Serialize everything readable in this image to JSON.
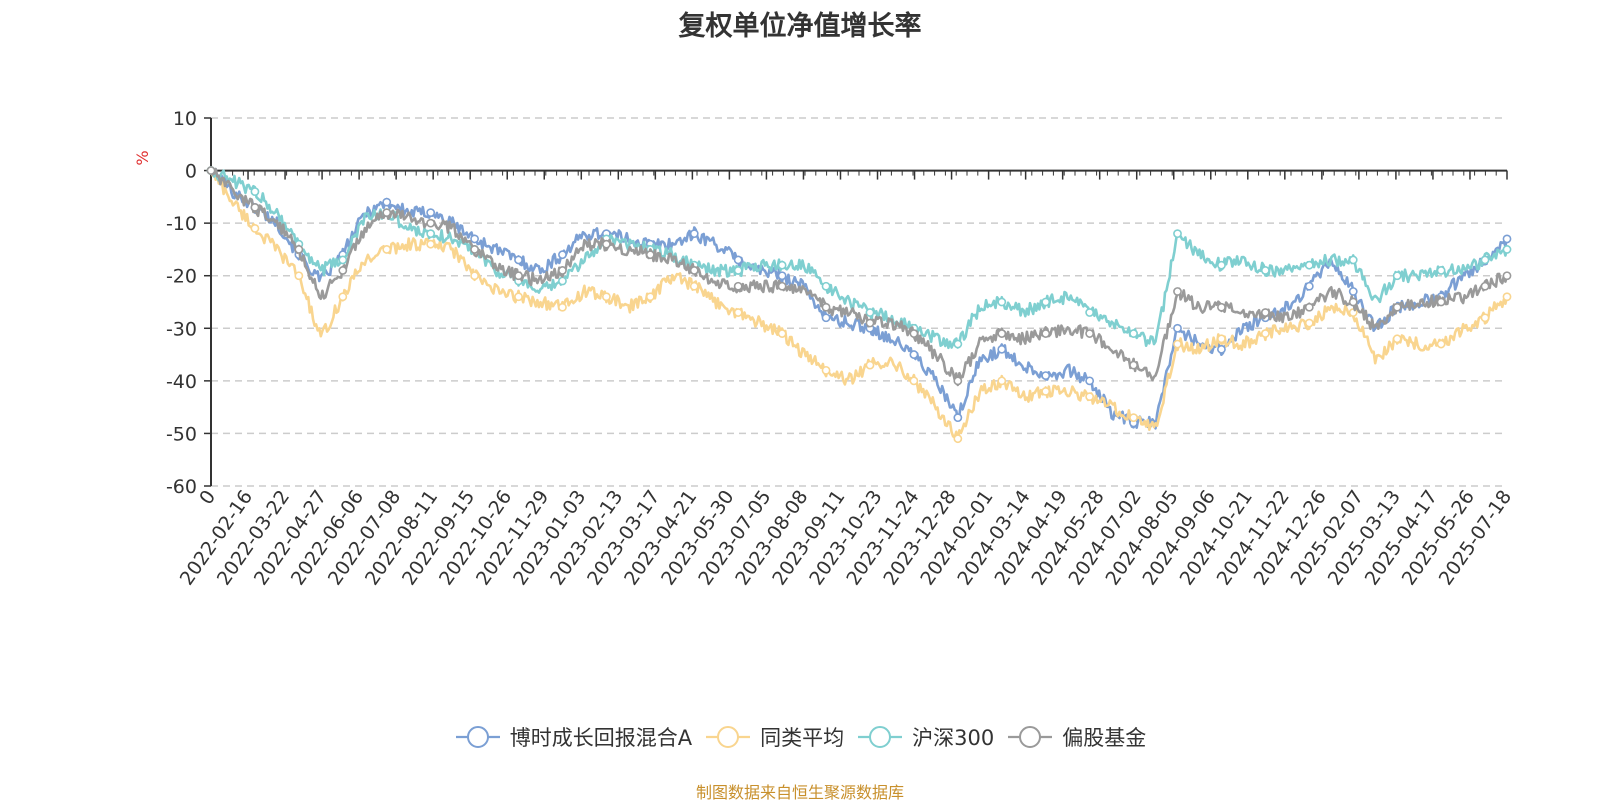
{
  "chart_data": {
    "type": "line",
    "title": "复权单位净值增长率",
    "ylabel": "%",
    "ylim": [
      -60,
      10
    ],
    "yticks": [
      "10",
      "0",
      "-10",
      "-20",
      "-30",
      "-40",
      "-50",
      "-60"
    ],
    "x_tick_labels": [
      "0",
      "2022-02-16",
      "2022-03-22",
      "2022-04-27",
      "2022-06-06",
      "2022-07-08",
      "2022-08-11",
      "2022-09-15",
      "2022-10-26",
      "2022-11-29",
      "2023-01-03",
      "2023-02-13",
      "2023-03-17",
      "2023-04-21",
      "2023-05-30",
      "2023-07-05",
      "2023-08-08",
      "2023-09-11",
      "2023-10-23",
      "2023-11-24",
      "2023-12-28",
      "2024-02-01",
      "2024-03-14",
      "2024-04-19",
      "2024-05-28",
      "2024-07-02",
      "2024-08-05",
      "2024-09-06",
      "2024-10-21",
      "2024-11-22",
      "2024-12-26",
      "2025-02-07",
      "2025-03-13",
      "2025-04-17",
      "2025-05-26",
      "2025-07-18"
    ],
    "grid": true,
    "legend_position": "bottom",
    "series": [
      {
        "name": "博时成长回报混合A",
        "color": "#7b9fd4",
        "values": [
          0,
          -4,
          -7,
          -10,
          -16,
          -21,
          -16,
          -8,
          -6,
          -8,
          -8,
          -10,
          -13,
          -15,
          -17,
          -19,
          -16,
          -12,
          -12,
          -13,
          -14,
          -14,
          -12,
          -14,
          -17,
          -19,
          -20,
          -22,
          -28,
          -29,
          -30,
          -32,
          -35,
          -40,
          -47,
          -36,
          -34,
          -37,
          -39,
          -38,
          -40,
          -46,
          -48,
          -48,
          -30,
          -33,
          -34,
          -30,
          -28,
          -26,
          -22,
          -17,
          -23,
          -30,
          -26,
          -25,
          -24,
          -20,
          -17,
          -13
        ]
      },
      {
        "name": "同类平均",
        "color": "#f9d58f",
        "values": [
          0,
          -6,
          -11,
          -15,
          -20,
          -32,
          -24,
          -17,
          -15,
          -14,
          -14,
          -15,
          -20,
          -23,
          -24,
          -25,
          -26,
          -23,
          -24,
          -26,
          -24,
          -20,
          -22,
          -25,
          -27,
          -29,
          -31,
          -35,
          -38,
          -40,
          -37,
          -36,
          -40,
          -45,
          -51,
          -42,
          -40,
          -43,
          -42,
          -42,
          -43,
          -45,
          -47,
          -49,
          -33,
          -34,
          -32,
          -33,
          -31,
          -30,
          -29,
          -26,
          -27,
          -36,
          -32,
          -33,
          -33,
          -30,
          -28,
          -24
        ]
      },
      {
        "name": "沪深300",
        "color": "#7fcfd0",
        "values": [
          0,
          -2,
          -4,
          -8,
          -14,
          -19,
          -17,
          -9,
          -8,
          -11,
          -12,
          -13,
          -15,
          -19,
          -21,
          -23,
          -21,
          -17,
          -13,
          -14,
          -15,
          -16,
          -18,
          -19,
          -19,
          -18,
          -18,
          -18,
          -22,
          -25,
          -27,
          -28,
          -30,
          -32,
          -33,
          -26,
          -25,
          -27,
          -25,
          -24,
          -27,
          -29,
          -31,
          -33,
          -12,
          -16,
          -18,
          -17,
          -19,
          -19,
          -18,
          -17,
          -17,
          -25,
          -20,
          -20,
          -19,
          -19,
          -17,
          -15
        ]
      },
      {
        "name": "偏股基金",
        "color": "#9a9a9a",
        "values": [
          0,
          -4,
          -7,
          -10,
          -15,
          -24,
          -19,
          -11,
          -8,
          -9,
          -10,
          -11,
          -15,
          -18,
          -20,
          -21,
          -19,
          -14,
          -14,
          -15,
          -16,
          -17,
          -19,
          -21,
          -22,
          -22,
          -22,
          -23,
          -26,
          -27,
          -29,
          -29,
          -31,
          -35,
          -40,
          -33,
          -31,
          -32,
          -31,
          -30,
          -31,
          -34,
          -37,
          -39,
          -23,
          -26,
          -26,
          -27,
          -27,
          -28,
          -26,
          -23,
          -25,
          -30,
          -26,
          -25,
          -25,
          -24,
          -22,
          -20
        ]
      }
    ]
  },
  "source_note": "制图数据来自恒生聚源数据库"
}
